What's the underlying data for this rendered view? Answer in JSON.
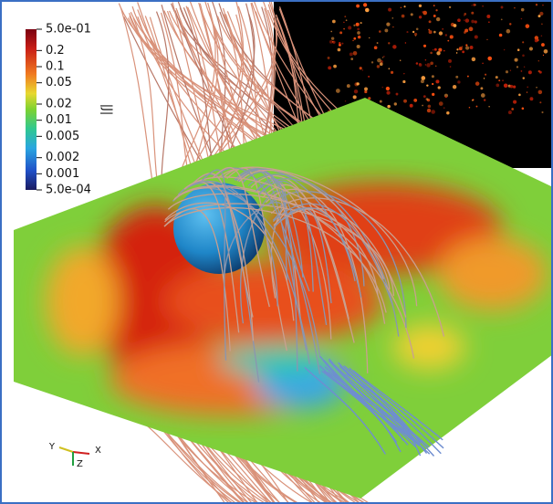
{
  "colorbar": {
    "title": "|J|",
    "scale": "log",
    "range": [
      0.0005,
      0.5
    ],
    "ticks": [
      {
        "value": 0.5,
        "label": "5.0e-01"
      },
      0.2,
      0.1,
      0.05,
      0.02,
      0.01,
      0.005,
      0.002,
      0.001,
      {
        "value": 0.0005,
        "label": "5.0e-04"
      }
    ]
  },
  "axes": {
    "x": "X",
    "y": "Y",
    "z": "Z"
  }
}
